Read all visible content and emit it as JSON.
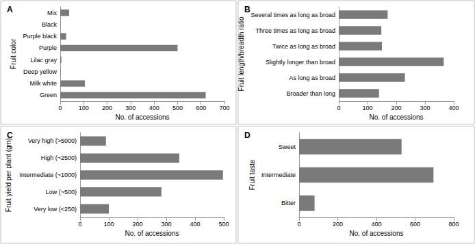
{
  "chart_data": [
    {
      "type": "bar",
      "title": "A",
      "orientation": "horizontal",
      "grid": false,
      "color": "#7a7a7a",
      "x_label": "No. of accessions",
      "y_label": "Fruit color",
      "categories": [
        "Green",
        "Milk white",
        "Deep yellow",
        "Lilac gray",
        "Purple",
        "Purple black",
        "Black",
        "Mix"
      ],
      "values": [
        620,
        105,
        2,
        5,
        500,
        25,
        1,
        38
      ],
      "xlim": [
        0,
        700
      ],
      "xticks": [
        0,
        100,
        200,
        300,
        400,
        500,
        600,
        700
      ]
    },
    {
      "type": "bar",
      "title": "B",
      "orientation": "horizontal",
      "grid": false,
      "color": "#7a7a7a",
      "x_label": "No. of accessions",
      "y_label": "Fruit length/breadth ratio",
      "categories": [
        "Broader than long",
        "As long as broad",
        "Slightly longer than broad",
        "Twice as long as broad",
        "Three times as long as broad",
        "Several times as long as broad"
      ],
      "values": [
        140,
        230,
        365,
        150,
        148,
        170
      ],
      "xlim": [
        0,
        400
      ],
      "xticks": [
        0,
        100,
        200,
        300,
        400
      ]
    },
    {
      "type": "bar",
      "title": "C",
      "orientation": "horizontal",
      "grid": false,
      "color": "#7a7a7a",
      "x_label": "No. of accessions",
      "y_label": "Fruit yield per plant (gm)",
      "categories": [
        "Very low (<250)",
        "Low (~500)",
        "Intermediate (~1000)",
        "High (~2500)",
        "Very high (>5000)"
      ],
      "values": [
        100,
        283,
        497,
        345,
        90
      ],
      "xlim": [
        0,
        500
      ],
      "xticks": [
        0,
        100,
        200,
        300,
        400,
        500
      ]
    },
    {
      "type": "bar",
      "title": "D",
      "orientation": "horizontal",
      "grid": false,
      "color": "#7a7a7a",
      "x_label": "No. of accessions",
      "y_label": "Fruit taste",
      "categories": [
        "Bitter",
        "Intermediate",
        "Sweet"
      ],
      "values": [
        80,
        695,
        530
      ],
      "xlim": [
        0,
        800
      ],
      "xticks": [
        0,
        200,
        400,
        600,
        800
      ]
    }
  ]
}
